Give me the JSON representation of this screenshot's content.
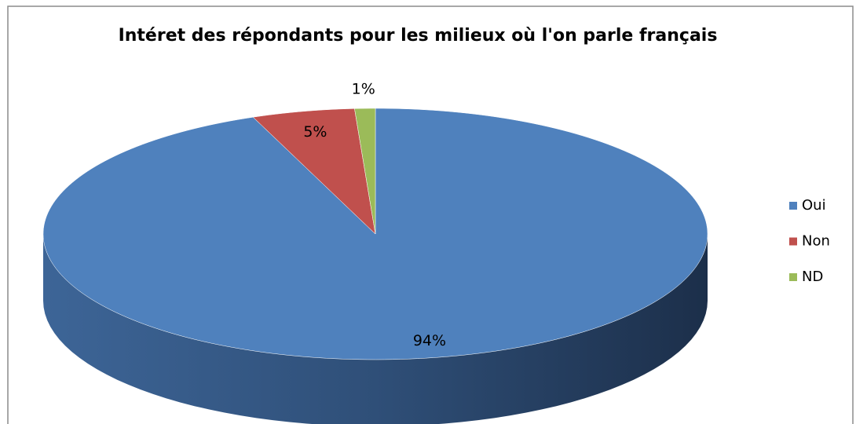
{
  "chart_data": {
    "type": "pie",
    "title": "Intéret des répondants pour les milieux où l'on parle français",
    "categories": [
      "Oui",
      "Non",
      "ND"
    ],
    "values": [
      94,
      5,
      1
    ],
    "value_labels": [
      "94%",
      "5%",
      "1%"
    ],
    "colors": [
      "#4f81bd",
      "#c0504d",
      "#9bbb59"
    ],
    "legend": "right"
  }
}
